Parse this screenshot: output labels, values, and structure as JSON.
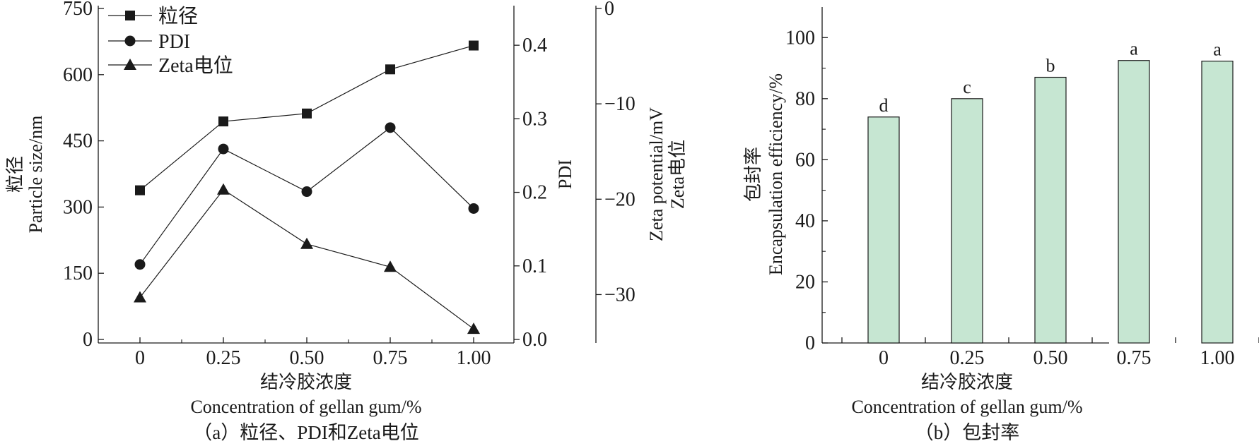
{
  "chart_data": [
    {
      "type": "line",
      "caption": "（a）粒径、PDI和Zeta电位",
      "xlabel_cn": "结冷胶浓度",
      "xlabel_en": "Concentration of gellan gum/%",
      "categories": [
        "0",
        "0.25",
        "0.50",
        "0.75",
        "1.00"
      ],
      "axes": {
        "left": {
          "label_cn": "粒径",
          "label_en": "Particle size/nm",
          "ylim": [
            0,
            750
          ],
          "ticks": [
            "0",
            "150",
            "300",
            "450",
            "600",
            "750"
          ]
        },
        "pdi": {
          "label": "PDI",
          "ylim": [
            0,
            0.45
          ],
          "ticks": [
            "0.0",
            "0.1",
            "0.2",
            "0.3",
            "0.4"
          ]
        },
        "zeta": {
          "label_en": "Zeta potential/mV",
          "label_cn": "Zeta电位",
          "ylim": [
            -35,
            0
          ],
          "ticks": [
            "−30",
            "−20",
            "−10",
            "0"
          ]
        }
      },
      "series": [
        {
          "name": "粒径",
          "axis": "left",
          "marker": "square",
          "values": [
            338,
            494,
            512,
            612,
            666
          ]
        },
        {
          "name": "PDI",
          "axis": "pdi",
          "marker": "circle",
          "values": [
            0.102,
            0.259,
            0.201,
            0.288,
            0.178
          ]
        },
        {
          "name": "Zeta电位",
          "axis": "zeta",
          "marker": "triangle",
          "values": [
            -30.3,
            -19.0,
            -24.7,
            -27.1,
            -33.6
          ]
        }
      ],
      "legend_position": "top-left",
      "grid": false
    },
    {
      "type": "bar",
      "caption": "（b）包封率",
      "xlabel_cn": "结冷胶浓度",
      "xlabel_en": "Concentration of gellan gum/%",
      "ylabel_cn": "包封率",
      "ylabel_en": "Encapsulation efficiency/%",
      "categories": [
        "0",
        "0.25",
        "0.50",
        "0.75",
        "1.00"
      ],
      "values": [
        74,
        80,
        87,
        92.5,
        92.3
      ],
      "labels": [
        "d",
        "c",
        "b",
        "a",
        "a"
      ],
      "ylim": [
        0,
        110
      ],
      "ticks": [
        "0",
        "20",
        "40",
        "60",
        "80",
        "100"
      ],
      "bar_color": "#c6e6d2",
      "grid": false
    }
  ]
}
